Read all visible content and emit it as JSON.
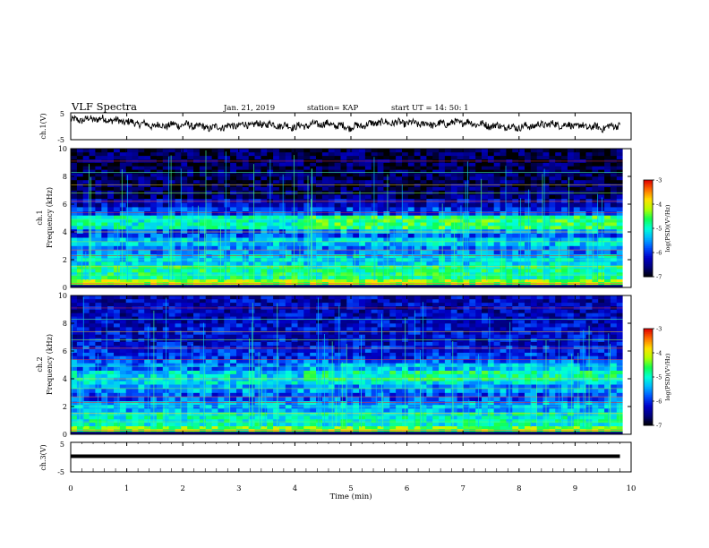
{
  "header": {
    "title": "VLF Spectra",
    "date": "Jan. 21, 2019",
    "station": "station= KAP",
    "start": "start UT =  14: 50: 1"
  },
  "colors": {
    "axis": "#000000",
    "background": "#ffffff",
    "spectrogram_palette": [
      "#000000",
      "#00007a",
      "#0000c8",
      "#0050ff",
      "#00b4ff",
      "#00ffd8",
      "#10ff50",
      "#b4ff00",
      "#ffe000",
      "#ff7000",
      "#e00000",
      "#ffffff"
    ]
  },
  "chart_data": [
    {
      "type": "line",
      "panel": "ch1-voltage",
      "ylabel": "ch.1(V)",
      "ylim": [
        -5,
        5
      ],
      "yticks": [
        "5",
        "-5"
      ],
      "xlim": [
        0,
        10
      ],
      "description_series": "noisy waveform oscillating around +1 V",
      "x": [
        0,
        0.5,
        1,
        1.5,
        2,
        2.5,
        3,
        3.5,
        4,
        4.5,
        5,
        5.5,
        6,
        6.5,
        7,
        7.5,
        8,
        8.5,
        9,
        9.5,
        9.8
      ],
      "y": [
        2.2,
        2.8,
        1.6,
        0.2,
        0.6,
        -0.6,
        0.4,
        0.8,
        -0.2,
        1.0,
        -0.4,
        1.4,
        1.2,
        0.6,
        1.6,
        0.2,
        -0.4,
        0.8,
        0.2,
        -0.6,
        0.6
      ]
    },
    {
      "type": "heatmap",
      "panel": "ch1-spectrogram",
      "ylabel": "ch.1\nFrequency (kHz)",
      "ylim": [
        0,
        10
      ],
      "yticks": [
        "0",
        "2",
        "4",
        "6",
        "8",
        "10"
      ],
      "xlim": [
        0,
        10
      ],
      "colorbar": {
        "label": "log(PSD)(V²/Hz)",
        "range": [
          -7,
          -3
        ],
        "ticks": [
          "-3",
          "-4",
          "-5",
          "-6",
          "-7"
        ]
      },
      "bands_khz": [
        [
          0.2,
          0.6,
          -4.2
        ],
        [
          0.6,
          1.6,
          -4.8
        ],
        [
          1.6,
          2.4,
          -5.2
        ],
        [
          2.4,
          3.0,
          -5.6
        ],
        [
          3.0,
          3.6,
          -5.3
        ],
        [
          3.6,
          4.2,
          -5.8
        ],
        [
          4.2,
          5.2,
          -5.0
        ],
        [
          5.2,
          5.8,
          -5.9
        ],
        [
          5.8,
          6.4,
          -6.3
        ],
        [
          6.4,
          7.0,
          -6.6
        ],
        [
          7.0,
          10.0,
          -6.7
        ]
      ]
    },
    {
      "type": "heatmap",
      "panel": "ch2-spectrogram",
      "ylabel": "ch.2\nFrequency (kHz)",
      "ylim": [
        0,
        10
      ],
      "yticks": [
        "0",
        "2",
        "4",
        "6",
        "8",
        "10"
      ],
      "xlim": [
        0,
        10
      ],
      "colorbar": {
        "label": "log(PSD)(V²/Hz)",
        "range": [
          -7,
          -3
        ],
        "ticks": [
          "-3",
          "-4",
          "-5",
          "-6",
          "-7"
        ]
      },
      "bands_khz": [
        [
          0.2,
          0.6,
          -4.4
        ],
        [
          0.6,
          1.6,
          -5.0
        ],
        [
          1.6,
          2.4,
          -5.4
        ],
        [
          2.4,
          3.0,
          -5.8
        ],
        [
          3.0,
          3.6,
          -5.5
        ],
        [
          3.6,
          4.6,
          -5.2
        ],
        [
          4.6,
          5.4,
          -5.7
        ],
        [
          5.4,
          6.4,
          -6.0
        ],
        [
          6.4,
          8.0,
          -6.2
        ],
        [
          8.0,
          10.0,
          -6.3
        ]
      ]
    },
    {
      "type": "line",
      "panel": "ch3-voltage",
      "ylabel": "ch.3(V)",
      "ylim": [
        -5,
        5
      ],
      "yticks": [
        "5",
        "-5"
      ],
      "xlim": [
        0,
        10
      ],
      "xlabel": "Time (min)",
      "xticks": [
        "0",
        "1",
        "2",
        "3",
        "4",
        "5",
        "6",
        "7",
        "8",
        "9",
        "10"
      ],
      "x": [
        0,
        9.8
      ],
      "y": [
        0.6,
        0.6
      ]
    }
  ]
}
